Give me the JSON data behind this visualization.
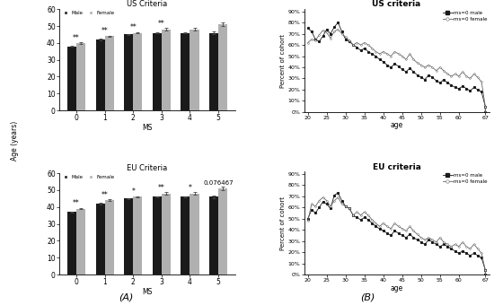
{
  "us_bar_male": [
    38,
    42,
    45,
    46,
    46,
    46
  ],
  "us_bar_female": [
    40,
    44,
    46,
    48,
    48,
    51
  ],
  "us_bar_male_err": [
    0.4,
    0.4,
    0.4,
    0.4,
    0.4,
    0.7
  ],
  "us_bar_female_err": [
    0.4,
    0.4,
    0.4,
    0.7,
    0.7,
    1.1
  ],
  "us_bar_sig": [
    "**",
    "**",
    "**",
    "**",
    "",
    ""
  ],
  "eu_bar_male": [
    37,
    42,
    45,
    46,
    46,
    46
  ],
  "eu_bar_female": [
    39,
    44,
    46,
    48,
    48,
    51
  ],
  "eu_bar_male_err": [
    0.4,
    0.4,
    0.4,
    0.4,
    0.4,
    0.7
  ],
  "eu_bar_female_err": [
    0.4,
    0.4,
    0.4,
    0.7,
    0.7,
    1.1
  ],
  "eu_bar_sig": [
    "**",
    "**",
    "*",
    "**",
    "*",
    "0.076467"
  ],
  "ms_labels": [
    0,
    1,
    2,
    3,
    4,
    5
  ],
  "bar_color_male": "#1a1a1a",
  "bar_color_female": "#b0b0b0",
  "ylim_bar": [
    0,
    60
  ],
  "yticks_bar": [
    0,
    10,
    20,
    30,
    40,
    50,
    60
  ],
  "us_title_bar": "US Criteria",
  "eu_title_bar": "EU Criteria",
  "bar_xlabel": "MS",
  "bar_ylabel": "Age (years)",
  "legend_male": "Male",
  "legend_female": "Female",
  "us_line_title": "US criteria",
  "eu_line_title": "EU criteria",
  "line_xlabel": "age",
  "line_ylabel": "Percent of cohort",
  "us_male_data": [
    75,
    72,
    65,
    63,
    68,
    74,
    70,
    76,
    80,
    72,
    65,
    63,
    60,
    58,
    55,
    57,
    54,
    52,
    50,
    47,
    45,
    42,
    40,
    43,
    41,
    38,
    36,
    39,
    36,
    33,
    31,
    29,
    33,
    31,
    28,
    26,
    29,
    26,
    24,
    22,
    21,
    23,
    21,
    19,
    22,
    20,
    18,
    5,
    0
  ],
  "us_female_data": [
    62,
    65,
    64,
    69,
    73,
    71,
    66,
    72,
    74,
    70,
    67,
    64,
    60,
    62,
    60,
    62,
    60,
    57,
    54,
    52,
    54,
    52,
    50,
    54,
    52,
    50,
    47,
    52,
    47,
    44,
    42,
    40,
    42,
    40,
    37,
    40,
    37,
    34,
    32,
    34,
    32,
    36,
    32,
    30,
    34,
    31,
    27,
    5,
    0
  ],
  "eu_male_data": [
    50,
    58,
    55,
    60,
    65,
    63,
    59,
    71,
    73,
    66,
    61,
    59,
    53,
    51,
    49,
    51,
    49,
    46,
    43,
    41,
    39,
    37,
    35,
    39,
    37,
    35,
    33,
    36,
    33,
    31,
    29,
    27,
    31,
    29,
    27,
    25,
    27,
    25,
    23,
    21,
    19,
    21,
    19,
    17,
    19,
    17,
    15,
    4,
    0
  ],
  "eu_female_data": [
    48,
    63,
    61,
    66,
    69,
    66,
    61,
    66,
    69,
    63,
    61,
    59,
    53,
    56,
    53,
    56,
    53,
    49,
    46,
    43,
    46,
    43,
    41,
    46,
    43,
    41,
    39,
    43,
    39,
    36,
    33,
    31,
    33,
    31,
    29,
    33,
    29,
    27,
    25,
    27,
    25,
    29,
    25,
    23,
    27,
    23,
    19,
    4,
    0
  ],
  "age_points": [
    20,
    21,
    22,
    23,
    24,
    25,
    26,
    27,
    28,
    29,
    30,
    31,
    32,
    33,
    34,
    35,
    36,
    37,
    38,
    39,
    40,
    41,
    42,
    43,
    44,
    45,
    46,
    47,
    48,
    49,
    50,
    51,
    52,
    53,
    54,
    55,
    56,
    57,
    58,
    59,
    60,
    61,
    62,
    63,
    64,
    65,
    66,
    67,
    67
  ],
  "background_color": "#ffffff",
  "title_A": "(A)",
  "title_B": "(B)"
}
